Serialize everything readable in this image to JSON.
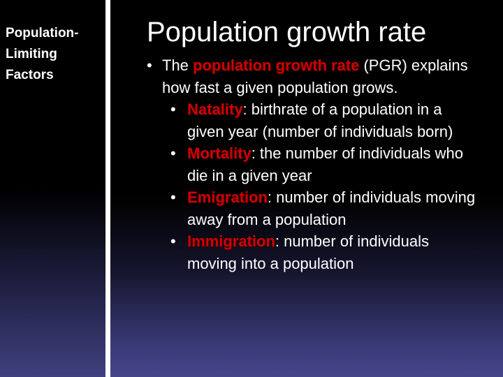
{
  "sidebar": {
    "title": "Population-Limiting Factors"
  },
  "slide": {
    "title": "Population growth rate",
    "bullets": [
      {
        "prefix": "The ",
        "term": "population growth rate",
        "rest": " (PGR) explains how fast a given population grows.",
        "sub": [
          {
            "term": "Natality",
            "rest": ": birthrate of a population in a given year (number of individuals born)"
          },
          {
            "term": "Mortality",
            "rest": ": the number of individuals who die in a given year"
          },
          {
            "term": "Emigration",
            "rest": ": number of  individuals moving away from a population"
          },
          {
            "term": "Immigration",
            "rest": ": number of individuals moving into a population"
          }
        ]
      }
    ]
  }
}
